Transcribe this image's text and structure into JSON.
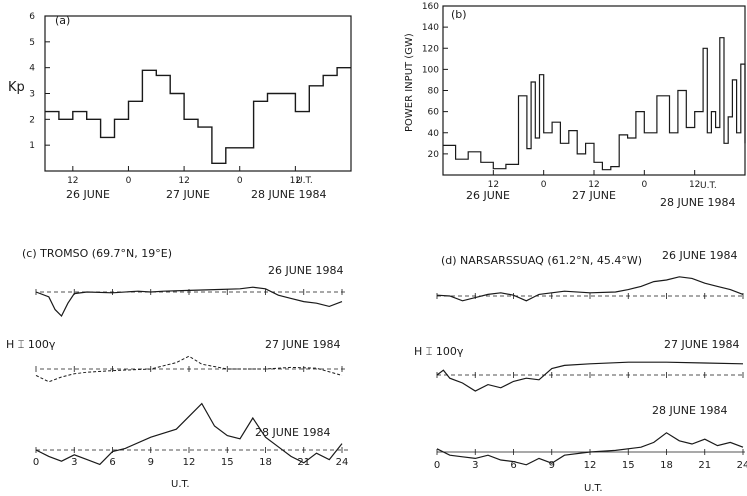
{
  "panel_a": {
    "label": "(a)",
    "ylabel": "Kp",
    "y_ticks": [
      "1",
      "2",
      "3",
      "4",
      "5",
      "6"
    ],
    "x_ticks": [
      "12",
      "0",
      "12",
      "0",
      "12"
    ],
    "x_unit": "U.T.",
    "dates": [
      "26 JUNE",
      "27 JUNE",
      "28 JUNE 1984"
    ]
  },
  "panel_b": {
    "label": "(b)",
    "ylabel": "POWER INPUT (GW)",
    "y_ticks": [
      "20",
      "40",
      "60",
      "80",
      "100",
      "120",
      "140",
      "160"
    ],
    "x_ticks": [
      "12",
      "0",
      "12",
      "0",
      "12"
    ],
    "x_unit": "U.T.",
    "dates": [
      "26 JUNE",
      "27 JUNE",
      "28 JUNE 1984"
    ]
  },
  "panel_c": {
    "label": "(c) TROMSO (69.7°N, 19°E)",
    "dates": [
      "26 JUNE 1984",
      "27 JUNE 1984",
      "28 JUNE 1984"
    ],
    "scale_label": "H ⌶ 100γ",
    "x_ticks": [
      "0",
      "3",
      "6",
      "9",
      "12",
      "15",
      "18",
      "21",
      "24"
    ],
    "xlabel": "U.T."
  },
  "panel_d": {
    "label": "(d) NARSARSSUAQ (61.2°N, 45.4°W)",
    "dates": [
      "26 JUNE 1984",
      "27 JUNE 1984",
      "28 JUNE 1984"
    ],
    "scale_label": "H ⌶ 100γ",
    "x_ticks": [
      "0",
      "3",
      "6",
      "9",
      "12",
      "15",
      "18",
      "21",
      "24"
    ],
    "xlabel": "U.T."
  },
  "chart_data": [
    {
      "id": "a",
      "type": "line",
      "step": true,
      "ylabel": "Kp",
      "xlabel": "U.T.",
      "x_unit": "hours since 26 June 00 UT",
      "xlim": [
        6,
        72
      ],
      "ylim": [
        0,
        6
      ],
      "x": [
        6,
        9,
        12,
        15,
        18,
        21,
        24,
        27,
        30,
        33,
        36,
        39,
        42,
        45,
        48,
        51,
        54,
        57,
        60,
        63,
        66,
        69,
        72
      ],
      "values": [
        2.3,
        2.0,
        2.3,
        2.0,
        1.3,
        2.0,
        2.7,
        3.9,
        3.7,
        3.0,
        2.0,
        1.7,
        0.3,
        0.9,
        0.9,
        2.7,
        3.0,
        3.0,
        2.3,
        3.3,
        3.7,
        4.0,
        4.0
      ]
    },
    {
      "id": "b",
      "type": "line",
      "step": true,
      "ylabel": "POWER INPUT (GW)",
      "xlabel": "U.T.",
      "x_unit": "hours since 26 June 00 UT",
      "xlim": [
        0,
        72
      ],
      "ylim": [
        0,
        160
      ],
      "x": [
        0,
        3,
        6,
        9,
        12,
        15,
        18,
        20,
        21,
        22,
        23,
        24,
        26,
        28,
        30,
        32,
        34,
        36,
        38,
        40,
        42,
        44,
        46,
        48,
        51,
        54,
        56,
        58,
        60,
        62,
        63,
        64,
        65,
        66,
        67,
        68,
        69,
        70,
        71,
        72
      ],
      "values": [
        28,
        15,
        22,
        12,
        6,
        10,
        75,
        25,
        88,
        35,
        95,
        40,
        50,
        30,
        42,
        20,
        30,
        12,
        5,
        8,
        38,
        35,
        60,
        40,
        75,
        40,
        80,
        45,
        60,
        120,
        40,
        60,
        45,
        130,
        30,
        55,
        90,
        40,
        105,
        30
      ]
    },
    {
      "id": "c",
      "type": "line",
      "station": "TROMSO",
      "xlabel": "U.T.",
      "xlim": [
        0,
        24
      ],
      "y_unit": "nT (H, offset from baseline)",
      "series": [
        {
          "name": "26 JUNE 1984",
          "x": [
            0,
            1,
            1.5,
            2,
            2.5,
            3,
            4,
            6,
            8,
            9,
            10,
            12,
            14,
            16,
            17,
            18,
            19,
            20,
            21,
            22,
            23,
            24
          ],
          "values": [
            0,
            -30,
            -110,
            -150,
            -70,
            -10,
            0,
            -5,
            5,
            0,
            5,
            10,
            15,
            20,
            30,
            20,
            -20,
            -40,
            -60,
            -70,
            -90,
            -60
          ]
        },
        {
          "name": "27 JUNE 1984",
          "x": [
            0,
            1,
            2,
            3,
            4,
            6,
            9,
            10,
            11,
            12,
            13,
            15,
            18,
            20,
            22,
            24
          ],
          "values": [
            -40,
            -80,
            -50,
            -30,
            -20,
            -10,
            0,
            20,
            40,
            80,
            30,
            0,
            0,
            10,
            5,
            -40
          ]
        },
        {
          "name": "28 JUNE 1984",
          "x": [
            0,
            1,
            2,
            3,
            4,
            5,
            6,
            7,
            9,
            11,
            12,
            13,
            14,
            15,
            16,
            17,
            18,
            19,
            20,
            21,
            22,
            23,
            24
          ],
          "values": [
            0,
            -40,
            -70,
            -30,
            -60,
            -90,
            -10,
            10,
            80,
            130,
            210,
            290,
            150,
            90,
            70,
            200,
            80,
            20,
            -40,
            -80,
            -20,
            -60,
            40
          ]
        }
      ]
    },
    {
      "id": "d",
      "type": "line",
      "station": "NARSARSSUAQ",
      "xlabel": "U.T.",
      "xlim": [
        0,
        24
      ],
      "y_unit": "nT (H, offset from baseline)",
      "series": [
        {
          "name": "26 JUNE 1984",
          "x": [
            0,
            1,
            2,
            3,
            4,
            5,
            6,
            7,
            8,
            10,
            12,
            14,
            15,
            16,
            17,
            18,
            19,
            20,
            21,
            22,
            23,
            24
          ],
          "values": [
            5,
            0,
            -30,
            -10,
            10,
            20,
            5,
            -30,
            10,
            30,
            20,
            25,
            40,
            60,
            90,
            100,
            120,
            110,
            80,
            60,
            40,
            10
          ]
        },
        {
          "name": "27 JUNE 1984",
          "x": [
            0,
            0.5,
            1,
            2,
            3,
            4,
            5,
            6,
            7,
            8,
            9,
            10,
            12,
            15,
            18,
            21,
            24
          ],
          "values": [
            0,
            30,
            -20,
            -50,
            -100,
            -60,
            -80,
            -40,
            -20,
            -30,
            40,
            60,
            70,
            80,
            80,
            75,
            70
          ]
        },
        {
          "name": "28 JUNE 1984",
          "x": [
            0,
            1,
            2,
            3,
            4,
            5,
            6,
            7,
            8,
            9,
            10,
            12,
            14,
            16,
            17,
            18,
            19,
            20,
            21,
            22,
            23,
            24
          ],
          "values": [
            20,
            -20,
            -30,
            -40,
            -20,
            -50,
            -60,
            -80,
            -40,
            -70,
            -20,
            0,
            10,
            30,
            60,
            120,
            70,
            50,
            80,
            40,
            60,
            30
          ]
        }
      ]
    }
  ]
}
